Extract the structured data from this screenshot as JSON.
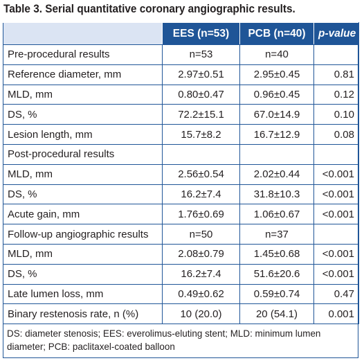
{
  "caption": "Table 3. Serial quantitative coronary angiographic results.",
  "columns": [
    "",
    "EES (n=53)",
    "PCB (n=40)",
    "p-value"
  ],
  "rows": [
    {
      "label": "Pre-procedural results",
      "ees": "n=53",
      "pcb": "n=40",
      "p": "",
      "section": true
    },
    {
      "label": "Reference diameter, mm",
      "ees": "2.97±0.51",
      "pcb": "2.95±0.45",
      "p": "0.81"
    },
    {
      "label": "MLD, mm",
      "ees": "0.80±0.47",
      "pcb": "0.96±0.45",
      "p": "0.12"
    },
    {
      "label": "DS, %",
      "ees": "72.2±15.1",
      "pcb": "67.0±14.9",
      "p": "0.10"
    },
    {
      "label": "Lesion length, mm",
      "ees": "15.7±8.2",
      "pcb": "16.7±12.9",
      "p": "0.08"
    },
    {
      "label": "Post-procedural results",
      "ees": "",
      "pcb": "",
      "p": "",
      "section": true
    },
    {
      "label": "MLD, mm",
      "ees": "2.56±0.54",
      "pcb": "2.02±0.44",
      "p": "<0.001"
    },
    {
      "label": "DS, %",
      "ees": "16.2±7.4",
      "pcb": "31.8±10.3",
      "p": "<0.001"
    },
    {
      "label": "Acute gain, mm",
      "ees": "1.76±0.69",
      "pcb": "1.06±0.67",
      "p": "<0.001"
    },
    {
      "label": "Follow-up angiographic results",
      "ees": "n=50",
      "pcb": "n=37",
      "p": "",
      "section": true
    },
    {
      "label": "MLD, mm",
      "ees": "2.08±0.79",
      "pcb": "1.45±0.68",
      "p": "<0.001"
    },
    {
      "label": "DS, %",
      "ees": "16.2±7.4",
      "pcb": "51.6±20.6",
      "p": "<0.001"
    },
    {
      "label": "Late lumen loss, mm",
      "ees": "0.49±0.62",
      "pcb": "0.59±0.74",
      "p": "0.47"
    },
    {
      "label": "Binary restenosis rate, n (%)",
      "ees": "10 (20.0)",
      "pcb": "20 (54.1)",
      "p": "0.001"
    }
  ],
  "footnote": "DS: diameter stenosis; EES: everolimus-eluting stent; MLD: minimum lumen diameter; PCB: paclitaxel-coated balloon",
  "colors": {
    "header_bg": "#1f5597",
    "header_text": "#ffffff",
    "border": "#1f5597",
    "text": "#231f20"
  }
}
